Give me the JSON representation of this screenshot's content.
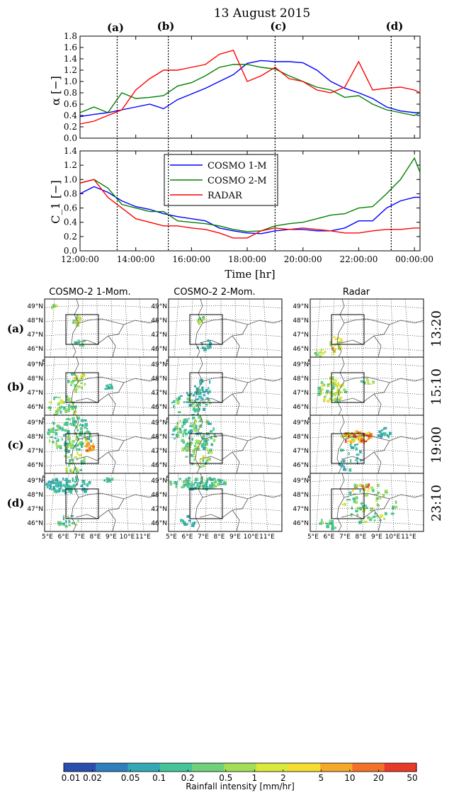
{
  "figure": {
    "title": "13 August 2015",
    "event_labels": [
      "(a)",
      "(b)",
      "(c)",
      "(d)"
    ],
    "event_hours": [
      13.333,
      15.167,
      19.0,
      23.167
    ],
    "colors": {
      "cosmo1": "#0000ff",
      "cosmo2": "#008000",
      "radar": "#ff0000",
      "event_line": "#000000",
      "map_border": "#555555",
      "grid": "#333333"
    }
  },
  "chart_data": [
    {
      "type": "line",
      "title": "13 August 2015",
      "ylabel": "α [−]",
      "xlabel": "",
      "xlim": [
        12,
        24.2
      ],
      "ylim": [
        0,
        1.8
      ],
      "yticks": [
        "0.0",
        "0.2",
        "0.4",
        "0.6",
        "0.8",
        "1.0",
        "1.2",
        "1.4",
        "1.6",
        "1.8"
      ],
      "grid": false,
      "series": [
        {
          "name": "COSMO 1-M",
          "color": "#0000ff",
          "x": [
            12,
            12.5,
            13,
            13.5,
            14,
            14.5,
            15,
            15.5,
            16,
            16.5,
            17,
            17.5,
            18,
            18.5,
            19,
            19.5,
            20,
            20.5,
            21,
            21.5,
            22,
            22.5,
            23,
            23.5,
            24,
            24.2
          ],
          "values": [
            0.38,
            0.42,
            0.45,
            0.5,
            0.55,
            0.6,
            0.52,
            0.68,
            0.78,
            0.88,
            1.0,
            1.12,
            1.32,
            1.37,
            1.35,
            1.35,
            1.33,
            1.2,
            1.0,
            0.88,
            0.8,
            0.7,
            0.55,
            0.48,
            0.45,
            0.45
          ]
        },
        {
          "name": "COSMO 2-M",
          "color": "#008000",
          "x": [
            12,
            12.5,
            13,
            13.5,
            14,
            14.5,
            15,
            15.5,
            16,
            16.5,
            17,
            17.5,
            18,
            18.5,
            19,
            19.5,
            20,
            20.5,
            21,
            21.5,
            22,
            22.5,
            23,
            23.5,
            24,
            24.2
          ],
          "values": [
            0.45,
            0.55,
            0.45,
            0.8,
            0.7,
            0.72,
            0.75,
            0.92,
            0.98,
            1.1,
            1.25,
            1.3,
            1.3,
            1.25,
            1.22,
            1.1,
            1.0,
            0.9,
            0.85,
            0.72,
            0.75,
            0.6,
            0.5,
            0.45,
            0.4,
            0.45
          ]
        },
        {
          "name": "RADAR",
          "color": "#ff0000",
          "x": [
            12,
            12.5,
            13,
            13.5,
            14,
            14.5,
            15,
            15.5,
            16,
            16.5,
            17,
            17.5,
            18,
            18.5,
            19,
            19.5,
            20,
            20.5,
            21,
            21.5,
            22,
            22.5,
            23,
            23.5,
            24,
            24.2
          ],
          "values": [
            0.25,
            0.3,
            0.4,
            0.5,
            0.85,
            1.05,
            1.2,
            1.2,
            1.25,
            1.3,
            1.48,
            1.55,
            1.0,
            1.1,
            1.25,
            1.05,
            1.0,
            0.85,
            0.8,
            0.9,
            1.35,
            0.85,
            0.88,
            0.9,
            0.85,
            0.8
          ]
        }
      ]
    },
    {
      "type": "line",
      "xlabel": "Time [hr]",
      "ylabel": "C_1 [−]",
      "xlim": [
        12,
        24.2
      ],
      "ylim": [
        0,
        1.4
      ],
      "yticks": [
        "0.0",
        "0.2",
        "0.4",
        "0.6",
        "0.8",
        "1.0",
        "1.2",
        "1.4"
      ],
      "xticks": [
        12,
        14,
        16,
        18,
        20,
        22,
        24
      ],
      "xticklabels": [
        "12:00:00",
        "14:00:00",
        "16:00:00",
        "18:00:00",
        "20:00:00",
        "22:00:00",
        "00:00:00"
      ],
      "legend": "top-center",
      "series": [
        {
          "name": "COSMO 1-M",
          "color": "#0000ff",
          "x": [
            12,
            12.5,
            13,
            13.5,
            14,
            14.5,
            15,
            15.5,
            16,
            16.5,
            17,
            17.5,
            18,
            18.5,
            19,
            19.5,
            20,
            20.5,
            21,
            21.5,
            22,
            22.5,
            23,
            23.5,
            24,
            24.2
          ],
          "values": [
            0.8,
            0.9,
            0.82,
            0.7,
            0.62,
            0.58,
            0.52,
            0.48,
            0.45,
            0.42,
            0.32,
            0.28,
            0.25,
            0.24,
            0.28,
            0.3,
            0.3,
            0.28,
            0.28,
            0.32,
            0.42,
            0.42,
            0.6,
            0.7,
            0.75,
            0.75
          ]
        },
        {
          "name": "COSMO 2-M",
          "color": "#008000",
          "x": [
            12,
            12.5,
            13,
            13.5,
            14,
            14.5,
            15,
            15.5,
            16,
            16.5,
            17,
            17.5,
            18,
            18.5,
            19,
            19.5,
            20,
            20.5,
            21,
            21.5,
            22,
            22.5,
            23,
            23.5,
            24,
            24.2
          ],
          "values": [
            0.95,
            1.0,
            0.88,
            0.65,
            0.6,
            0.55,
            0.55,
            0.42,
            0.4,
            0.38,
            0.35,
            0.3,
            0.27,
            0.28,
            0.35,
            0.38,
            0.4,
            0.45,
            0.5,
            0.52,
            0.6,
            0.62,
            0.8,
            1.0,
            1.3,
            1.1
          ]
        },
        {
          "name": "RADAR",
          "color": "#ff0000",
          "x": [
            12,
            12.5,
            13,
            13.5,
            14,
            14.5,
            15,
            15.5,
            16,
            16.5,
            17,
            17.5,
            18,
            18.5,
            19,
            19.5,
            20,
            20.5,
            21,
            21.5,
            22,
            22.5,
            23,
            23.5,
            24,
            24.2
          ],
          "values": [
            0.95,
            1.0,
            0.75,
            0.6,
            0.45,
            0.4,
            0.35,
            0.35,
            0.32,
            0.3,
            0.25,
            0.18,
            0.18,
            0.28,
            0.32,
            0.3,
            0.32,
            0.3,
            0.28,
            0.25,
            0.25,
            0.28,
            0.3,
            0.3,
            0.32,
            0.32
          ]
        }
      ]
    },
    {
      "type": "heatmap",
      "description_columns": [
        "COSMO-2 1-Mom.",
        "COSMO-2 2-Mom.",
        "Radar"
      ],
      "rows": [
        {
          "label": "(a)",
          "time": "13:20"
        },
        {
          "label": "(b)",
          "time": "15:10"
        },
        {
          "label": "(c)",
          "time": "19:00"
        },
        {
          "label": "(d)",
          "time": "23:10"
        }
      ],
      "lat_labels": [
        "49°N",
        "48°N",
        "47°N",
        "46°N"
      ],
      "lon_labels": [
        "5°E",
        "6°E",
        "7°E",
        "8°E",
        "9°E",
        "10°E",
        "11°E"
      ],
      "colorbar": {
        "label": "Rainfall intensity [mm/hr]",
        "ticks": [
          "0.01",
          "0.02",
          "0.05",
          "0.1",
          "0.2",
          "0.5",
          "1",
          "2",
          "5",
          "10",
          "20",
          "50"
        ],
        "colors": [
          "#2b4dae",
          "#2f7fbd",
          "#35a8b5",
          "#43c49a",
          "#6fd27a",
          "#a4dd56",
          "#dbe83c",
          "#f5dd31",
          "#f6a82a",
          "#f2722a",
          "#e83a2a"
        ]
      }
    }
  ]
}
